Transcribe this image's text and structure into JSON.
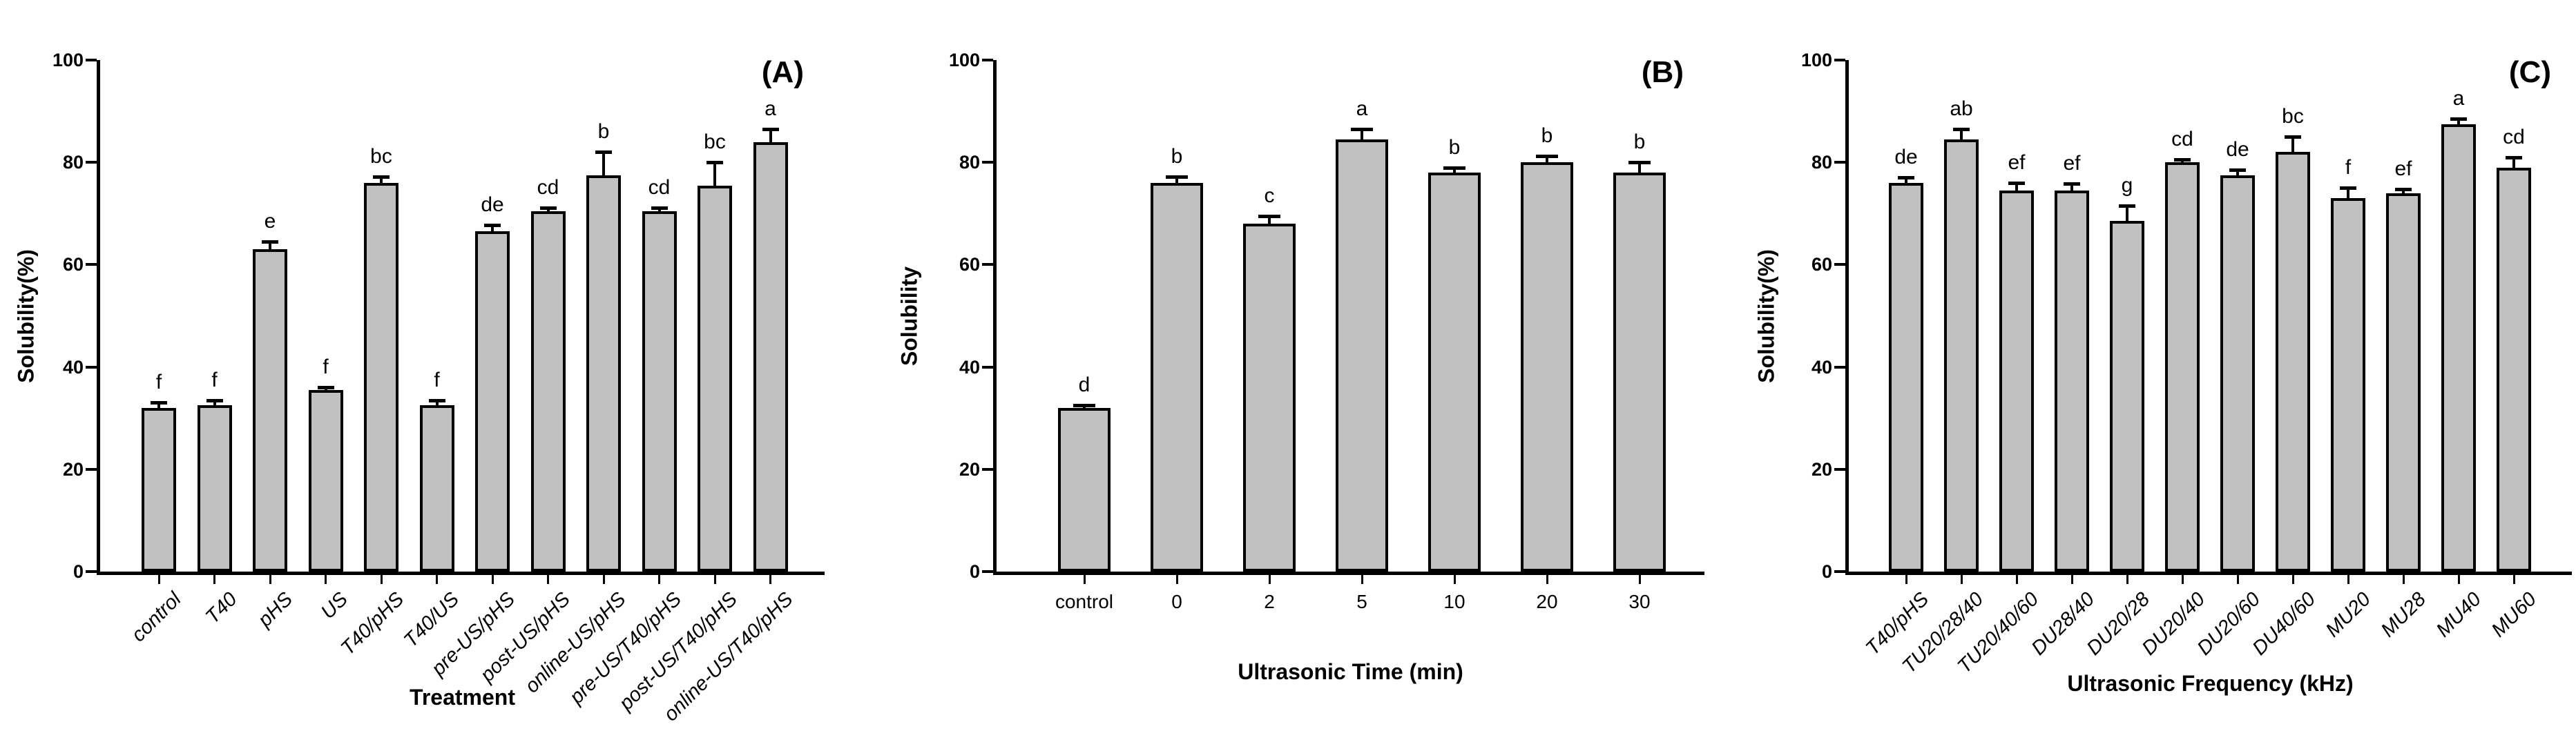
{
  "colors": {
    "bar_fill": "#c1c1c1",
    "bar_border": "#000000",
    "background": "#ffffff"
  },
  "chart_data": [
    {
      "type": "bar",
      "panel_label": "(A)",
      "xlabel": "Treatment",
      "ylabel": "Solubility(%)",
      "ylim": [
        0,
        100
      ],
      "yticks": [
        0,
        20,
        40,
        60,
        80,
        100
      ],
      "grid": false,
      "categories": [
        "control",
        "T40",
        "pHS",
        "US",
        "T40/pHS",
        "T40/US",
        "pre-US/pHS",
        "post-US/pHS",
        "online-US/pHS",
        "pre-US/T40/pHS",
        "post-US/T40/pHS",
        "online-US/T40/pHS"
      ],
      "values": [
        32,
        32.5,
        63,
        35.5,
        76,
        32.5,
        66.5,
        70.5,
        77.5,
        70.5,
        75.5,
        84
      ],
      "errors": [
        1,
        1,
        1.5,
        0.5,
        1.2,
        1,
        1.2,
        0.6,
        4.5,
        0.6,
        4.5,
        2.5
      ],
      "sig_letters": [
        "f",
        "f",
        "e",
        "f",
        "bc",
        "f",
        "de",
        "cd",
        "b",
        "cd",
        "bc",
        "a"
      ],
      "x_tick_style": "rotated-italic"
    },
    {
      "type": "bar",
      "panel_label": "(B)",
      "xlabel": "Ultrasonic Time (min)",
      "ylabel": "Solubility",
      "ylim": [
        0,
        100
      ],
      "yticks": [
        0,
        20,
        40,
        60,
        80,
        100
      ],
      "grid": false,
      "categories": [
        "control",
        "0",
        "2",
        "5",
        "10",
        "20",
        "30"
      ],
      "values": [
        32,
        76,
        68,
        84.5,
        78,
        80,
        78
      ],
      "errors": [
        0.5,
        1.2,
        1.5,
        2,
        1,
        1.2,
        2
      ],
      "sig_letters": [
        "d",
        "b",
        "c",
        "a",
        "b",
        "b",
        "b"
      ],
      "x_tick_style": "horizontal"
    },
    {
      "type": "bar",
      "panel_label": "(C)",
      "xlabel": "Ultrasonic Frequency (kHz)",
      "ylabel": "Solubility(%)",
      "ylim": [
        0,
        100
      ],
      "yticks": [
        0,
        20,
        40,
        60,
        80,
        100
      ],
      "grid": false,
      "categories": [
        "T40/pHS",
        "TU20/28/40",
        "TU20/40/60",
        "DU28/40",
        "DU20/28",
        "DU20/40",
        "DU20/60",
        "DU40/60",
        "MU20",
        "MU28",
        "MU40",
        "MU60"
      ],
      "values": [
        76,
        84.5,
        74.5,
        74.5,
        68.5,
        80,
        77.5,
        82,
        73,
        74,
        87.5,
        79
      ],
      "errors": [
        1,
        2,
        1.5,
        1.3,
        3,
        0.6,
        1,
        3,
        2,
        0.8,
        1,
        2
      ],
      "sig_letters": [
        "de",
        "ab",
        "ef",
        "ef",
        "g",
        "cd",
        "de",
        "bc",
        "f",
        "ef",
        "a",
        "cd"
      ],
      "x_tick_style": "rotated-italic"
    }
  ]
}
